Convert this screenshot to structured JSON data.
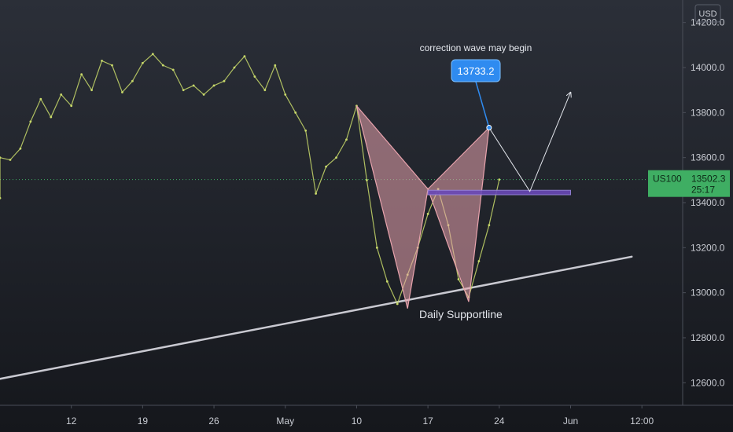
{
  "chart_data": {
    "type": "line",
    "symbol": "US100",
    "currency": "USD",
    "last_price": "13502.3",
    "countdown": "25:17",
    "ylim": [
      12500,
      14300
    ],
    "y_ticks": [
      12600,
      12800,
      13000,
      13200,
      13400,
      13600,
      13800,
      14000,
      14200
    ],
    "y_tick_labels": [
      "12600.0",
      "12800.0",
      "13000.0",
      "13200.0",
      "13400.0",
      "13600.0",
      "13800.0",
      "14000.0",
      "14200.0"
    ],
    "x_range": [
      "2021-04-05",
      "2021-06-11"
    ],
    "x_ticks": [
      {
        "date": "2021-04-12",
        "label": "12"
      },
      {
        "date": "2021-04-19",
        "label": "19"
      },
      {
        "date": "2021-04-26",
        "label": "26"
      },
      {
        "date": "2021-05-03",
        "label": "May"
      },
      {
        "date": "2021-05-10",
        "label": "10"
      },
      {
        "date": "2021-05-17",
        "label": "17"
      },
      {
        "date": "2021-05-24",
        "label": "24"
      },
      {
        "date": "2021-05-31",
        "label": "Jun"
      },
      {
        "date": "2021-06-07",
        "label": "12:00"
      }
    ],
    "series": [
      {
        "color": "#c8d96a",
        "points": [
          [
            "2021-04-05",
            13420
          ],
          [
            "2021-04-05",
            13600
          ],
          [
            "2021-04-06",
            13590
          ],
          [
            "2021-04-07",
            13640
          ],
          [
            "2021-04-08",
            13760
          ],
          [
            "2021-04-09",
            13860
          ],
          [
            "2021-04-10",
            13780
          ],
          [
            "2021-04-11",
            13880
          ],
          [
            "2021-04-12",
            13830
          ],
          [
            "2021-04-13",
            13970
          ],
          [
            "2021-04-14",
            13900
          ],
          [
            "2021-04-15",
            14030
          ],
          [
            "2021-04-16",
            14010
          ],
          [
            "2021-04-17",
            13890
          ],
          [
            "2021-04-18",
            13940
          ],
          [
            "2021-04-19",
            14020
          ],
          [
            "2021-04-20",
            14060
          ],
          [
            "2021-04-21",
            14010
          ],
          [
            "2021-04-22",
            13990
          ],
          [
            "2021-04-23",
            13900
          ],
          [
            "2021-04-24",
            13920
          ],
          [
            "2021-04-25",
            13880
          ],
          [
            "2021-04-26",
            13920
          ],
          [
            "2021-04-27",
            13940
          ],
          [
            "2021-04-28",
            14000
          ],
          [
            "2021-04-29",
            14050
          ],
          [
            "2021-04-30",
            13960
          ],
          [
            "2021-05-01",
            13900
          ],
          [
            "2021-05-02",
            14010
          ],
          [
            "2021-05-03",
            13880
          ],
          [
            "2021-05-04",
            13800
          ],
          [
            "2021-05-05",
            13720
          ],
          [
            "2021-05-06",
            13440
          ],
          [
            "2021-05-07",
            13560
          ],
          [
            "2021-05-08",
            13600
          ],
          [
            "2021-05-09",
            13680
          ],
          [
            "2021-05-10",
            13830
          ],
          [
            "2021-05-11",
            13500
          ],
          [
            "2021-05-12",
            13200
          ],
          [
            "2021-05-13",
            13050
          ],
          [
            "2021-05-14",
            12950
          ],
          [
            "2021-05-15",
            13080
          ],
          [
            "2021-05-16",
            13200
          ],
          [
            "2021-05-17",
            13350
          ],
          [
            "2021-05-18",
            13460
          ],
          [
            "2021-05-19",
            13300
          ],
          [
            "2021-05-20",
            13060
          ],
          [
            "2021-05-21",
            12980
          ],
          [
            "2021-05-22",
            13140
          ],
          [
            "2021-05-23",
            13300
          ],
          [
            "2021-05-24",
            13502.3
          ]
        ]
      }
    ],
    "bat_pattern": {
      "color": "#e8a3ad",
      "points": [
        [
          "2021-05-10",
          13830
        ],
        [
          "2021-05-15",
          12930
        ],
        [
          "2021-05-17",
          13460
        ],
        [
          "2021-05-21",
          12960
        ],
        [
          "2021-05-23",
          13733.2
        ]
      ]
    },
    "target_label": "13733.2",
    "target_note": "correction wave may begin",
    "target_zone": {
      "from": "2021-05-17",
      "to": "2021-05-31",
      "low": 13435,
      "high": 13455
    },
    "projection_path": [
      [
        "2021-05-23",
        13733.2
      ],
      [
        "2021-05-27",
        13450
      ],
      [
        "2021-05-31",
        13890
      ]
    ],
    "support_line": {
      "points": [
        [
          "2021-04-03",
          12600
        ],
        [
          "2021-06-06",
          13160
        ]
      ],
      "label": "Daily Supportline"
    },
    "grid": false,
    "price_line": true
  }
}
